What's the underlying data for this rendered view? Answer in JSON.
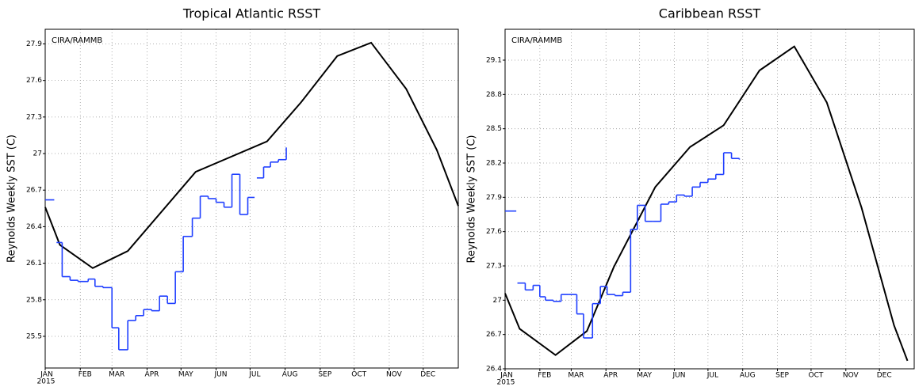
{
  "chart_data": [
    {
      "type": "line",
      "title": "Tropical Atlantic RSST",
      "ylabel": "Reynolds Weekly SST (C)",
      "annotation": "CIRA/RAMMB",
      "year_label": "2015",
      "xlim": [
        0,
        365
      ],
      "ylim": [
        25.24,
        28.02
      ],
      "grid": true,
      "xticks": [
        {
          "value": 0,
          "label": "JAN"
        },
        {
          "value": 31,
          "label": "FEB"
        },
        {
          "value": 59,
          "label": "MAR"
        },
        {
          "value": 90,
          "label": "APR"
        },
        {
          "value": 120,
          "label": "MAY"
        },
        {
          "value": 151,
          "label": "JUN"
        },
        {
          "value": 181,
          "label": "JUL"
        },
        {
          "value": 212,
          "label": "AUG"
        },
        {
          "value": 243,
          "label": "SEP"
        },
        {
          "value": 273,
          "label": "OCT"
        },
        {
          "value": 304,
          "label": "NOV"
        },
        {
          "value": 334,
          "label": "DEC"
        }
      ],
      "yticks": [
        25.5,
        25.8,
        26.1,
        26.4,
        26.7,
        27,
        27.3,
        27.6,
        27.9
      ],
      "series": [
        {
          "color": "#000000",
          "drawstyle": "default",
          "x": [
            0,
            13,
            42,
            73,
            133,
            196,
            226,
            258,
            288,
            319,
            346,
            365
          ],
          "values": [
            26.56,
            26.25,
            26.06,
            26.2,
            26.85,
            27.1,
            27.42,
            27.8,
            27.91,
            27.53,
            27.03,
            26.57
          ]
        },
        {
          "color": "#1f3fff",
          "drawstyle": "steps-post",
          "x": [
            0,
            8,
            10,
            15,
            22,
            29,
            38,
            44,
            51,
            59,
            65,
            73,
            80,
            87,
            94,
            101,
            108,
            115,
            122,
            130,
            137,
            144,
            151,
            158,
            165,
            172,
            179,
            185,
            187,
            193,
            199,
            206,
            213
          ],
          "values": [
            26.62,
            null,
            26.27,
            25.99,
            25.96,
            25.95,
            25.97,
            25.91,
            25.9,
            25.57,
            25.39,
            25.63,
            25.67,
            25.72,
            25.71,
            25.83,
            25.77,
            26.03,
            26.32,
            26.47,
            26.65,
            26.63,
            26.6,
            26.56,
            26.83,
            26.5,
            26.64,
            null,
            26.8,
            26.89,
            26.93,
            26.95,
            27.05
          ]
        }
      ]
    },
    {
      "type": "line",
      "title": "Caribbean RSST",
      "ylabel": "Reynolds Weekly SST (C)",
      "annotation": "CIRA/RAMMB",
      "year_label": "2015",
      "xlim": [
        0,
        365
      ],
      "ylim": [
        26.4,
        29.37
      ],
      "grid": true,
      "xticks": [
        {
          "value": 0,
          "label": "JAN"
        },
        {
          "value": 31,
          "label": "FEB"
        },
        {
          "value": 59,
          "label": "MAR"
        },
        {
          "value": 90,
          "label": "APR"
        },
        {
          "value": 120,
          "label": "MAY"
        },
        {
          "value": 151,
          "label": "JUN"
        },
        {
          "value": 181,
          "label": "JUL"
        },
        {
          "value": 212,
          "label": "AUG"
        },
        {
          "value": 243,
          "label": "SEP"
        },
        {
          "value": 273,
          "label": "OCT"
        },
        {
          "value": 304,
          "label": "NOV"
        },
        {
          "value": 334,
          "label": "DEC"
        }
      ],
      "yticks": [
        26.4,
        26.7,
        27,
        27.3,
        27.6,
        27.9,
        28.2,
        28.5,
        28.8,
        29.1
      ],
      "series": [
        {
          "color": "#000000",
          "drawstyle": "default",
          "x": [
            0,
            13,
            45,
            73,
            97,
            134,
            165,
            195,
            227,
            258,
            287,
            318,
            347,
            359
          ],
          "values": [
            27.06,
            26.75,
            26.52,
            26.73,
            27.29,
            27.99,
            28.34,
            28.53,
            29.01,
            29.22,
            28.73,
            27.81,
            26.78,
            26.47
          ]
        },
        {
          "color": "#1f3fff",
          "drawstyle": "steps-post",
          "x": [
            0,
            10,
            11,
            18,
            25,
            31,
            36,
            43,
            50,
            57,
            64,
            70,
            78,
            85,
            91,
            98,
            105,
            112,
            118,
            125,
            132,
            139,
            146,
            153,
            160,
            167,
            174,
            181,
            188,
            195,
            202,
            209
          ],
          "values": [
            27.78,
            null,
            27.15,
            27.09,
            27.13,
            27.03,
            27.0,
            26.99,
            27.05,
            27.05,
            26.88,
            26.67,
            26.97,
            27.12,
            27.05,
            27.04,
            27.07,
            27.62,
            27.83,
            27.69,
            27.69,
            27.84,
            27.86,
            27.92,
            27.91,
            27.99,
            28.03,
            28.06,
            28.1,
            28.29,
            28.24,
            28.23
          ]
        }
      ]
    }
  ]
}
